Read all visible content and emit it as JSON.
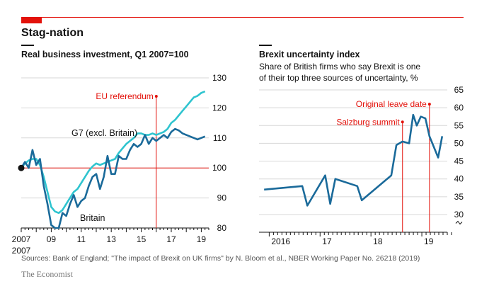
{
  "header": {
    "title": "Stag-nation"
  },
  "footer": {
    "sources": "Sources: Bank of England; \"The impact of Brexit on UK firms\" by N. Bloom et al., NBER Working Paper No. 26218 (2019)",
    "brand": "The Economist"
  },
  "colors": {
    "accent": "#e3120b",
    "britain": "#1a6a9a",
    "g7": "#2fc4cf",
    "grid": "#d7d7d7",
    "axis": "#121212"
  },
  "chart_data": [
    {
      "type": "line",
      "title": "Real business investment, Q1 2007=100",
      "xlabel": "",
      "ylabel": "",
      "xlim": [
        2007,
        2019.5
      ],
      "ylim": [
        80,
        130
      ],
      "yticks": [
        "80",
        "90",
        "100",
        "110",
        "120",
        "130"
      ],
      "xticks": [
        {
          "value": 2007,
          "label": "2007"
        },
        {
          "value": 2009,
          "label": "09"
        },
        {
          "value": 2011,
          "label": "11"
        },
        {
          "value": 2013,
          "label": "13"
        },
        {
          "value": 2015,
          "label": "15"
        },
        {
          "value": 2017,
          "label": "17"
        },
        {
          "value": 2019,
          "label": "19"
        }
      ],
      "secondary_xlabel": "2007",
      "reference_line": 100,
      "series": [
        {
          "name": "Britain",
          "color": "#1a6a9a",
          "x": [
            2007,
            2007.25,
            2007.5,
            2007.75,
            2008,
            2008.25,
            2008.5,
            2008.75,
            2009,
            2009.25,
            2009.5,
            2009.75,
            2010,
            2010.25,
            2010.5,
            2010.75,
            2011,
            2011.25,
            2011.5,
            2011.75,
            2012,
            2012.25,
            2012.5,
            2012.75,
            2013,
            2013.25,
            2013.5,
            2013.75,
            2014,
            2014.25,
            2014.5,
            2014.75,
            2015,
            2015.25,
            2015.5,
            2015.75,
            2016,
            2016.25,
            2016.5,
            2016.75,
            2017,
            2017.25,
            2017.5,
            2017.75,
            2018,
            2018.25,
            2018.5,
            2018.75,
            2019,
            2019.25
          ],
          "values": [
            100,
            102,
            100,
            106,
            101,
            103,
            94,
            88,
            81,
            80,
            80,
            85,
            84,
            88,
            91,
            87,
            89,
            90,
            94,
            97,
            98,
            93,
            97,
            104,
            98,
            98,
            104,
            103,
            103,
            106,
            108,
            107,
            108,
            111,
            108,
            110,
            109,
            110,
            111,
            110,
            112,
            113,
            112.5,
            111.5,
            111,
            110.5,
            110,
            109.5,
            110,
            110.5
          ]
        },
        {
          "name": "G7 (excl. Britain)",
          "color": "#2fc4cf",
          "x": [
            2007,
            2007.25,
            2007.5,
            2007.75,
            2008,
            2008.25,
            2008.5,
            2008.75,
            2009,
            2009.25,
            2009.5,
            2009.75,
            2010,
            2010.25,
            2010.5,
            2010.75,
            2011,
            2011.25,
            2011.5,
            2011.75,
            2012,
            2012.25,
            2012.5,
            2012.75,
            2013,
            2013.25,
            2013.5,
            2013.75,
            2014,
            2014.25,
            2014.5,
            2014.75,
            2015,
            2015.25,
            2015.5,
            2015.75,
            2016,
            2016.25,
            2016.5,
            2016.75,
            2017,
            2017.25,
            2017.5,
            2017.75,
            2018,
            2018.25,
            2018.5,
            2018.75,
            2019,
            2019.25
          ],
          "values": [
            100,
            101.5,
            102.5,
            103,
            103,
            101,
            97,
            92,
            87,
            85.5,
            85,
            86,
            88,
            90,
            92,
            93,
            95,
            97,
            99,
            100.5,
            101.5,
            101,
            101.5,
            102,
            102.5,
            103,
            105,
            106.5,
            108,
            109,
            110,
            111.5,
            111.5,
            111,
            111,
            111.5,
            111,
            111.5,
            112,
            113,
            115,
            116,
            117.5,
            119,
            120.5,
            122,
            123.5,
            124,
            125,
            125.5
          ]
        }
      ],
      "annotations": [
        {
          "text": "EU referendum",
          "x": 2016.0,
          "color": "#e3120b"
        },
        {
          "text": "G7 (excl. Britain)",
          "series": "G7 (excl. Britain)"
        },
        {
          "text": "Britain",
          "series": "Britain"
        }
      ],
      "grid": true
    },
    {
      "type": "line",
      "title": "Brexit uncertainty index",
      "subtitle": "Share of British firms who say Brexit is one of their top three sources of uncertainty, %",
      "xlabel": "",
      "ylabel": "",
      "xlim": [
        2015.9,
        2019.6
      ],
      "ylim": [
        30,
        65
      ],
      "yticks": [
        "30",
        "35",
        "40",
        "45",
        "50",
        "55",
        "60",
        "65"
      ],
      "xticks": [
        {
          "value": 2016.1,
          "label": "2016"
        },
        {
          "value": 2017.1,
          "label": "17"
        },
        {
          "value": 2018.1,
          "label": "18"
        },
        {
          "value": 2019.1,
          "label": "19"
        }
      ],
      "axis_break": true,
      "series": [
        {
          "name": "Brexit uncertainty",
          "color": "#1a6a9a",
          "x": [
            2016.0,
            2016.75,
            2016.85,
            2017.2,
            2017.3,
            2017.4,
            2017.83,
            2017.92,
            2018.5,
            2018.6,
            2018.72,
            2018.85,
            2018.93,
            2019.0,
            2019.08,
            2019.17,
            2019.25,
            2019.42,
            2019.5
          ],
          "values": [
            37,
            38,
            32.5,
            41,
            33,
            40,
            38,
            34,
            41,
            49.5,
            50.5,
            50,
            58,
            55,
            57.5,
            57,
            52,
            46,
            52
          ]
        }
      ],
      "annotations": [
        {
          "text": "Original leave date",
          "x": 2019.25,
          "color": "#e3120b"
        },
        {
          "text": "Salzburg summit",
          "x": 2018.72,
          "color": "#e3120b"
        }
      ],
      "grid": true
    }
  ]
}
